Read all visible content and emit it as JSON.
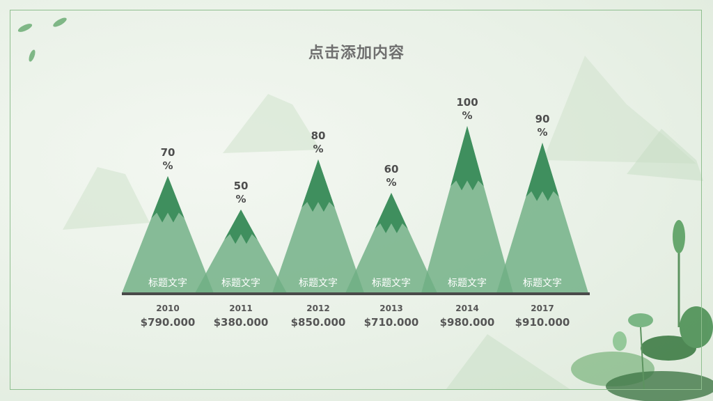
{
  "slide": {
    "title": "点击添加内容"
  },
  "chart_data": {
    "type": "bar",
    "categories": [
      "标题文字",
      "标题文字",
      "标题文字",
      "标题文字",
      "标题文字",
      "标题文字"
    ],
    "years": [
      "2010",
      "2011",
      "2012",
      "2013",
      "2014",
      "2017"
    ],
    "values": [
      70,
      50,
      80,
      60,
      100,
      90
    ],
    "value_labels": [
      "70 %",
      "50 %",
      "80 %",
      "60 %",
      "100 %",
      "90 %"
    ],
    "amounts": [
      "$790.000",
      "$380.000",
      "$850.000",
      "$710.000",
      "$980.000",
      "$910.000"
    ],
    "ylim": [
      0,
      100
    ],
    "grid": false,
    "colors": {
      "mountain": "#6fae84",
      "peak": "#3f8f5e",
      "baseline": "#4a4a4a"
    }
  }
}
